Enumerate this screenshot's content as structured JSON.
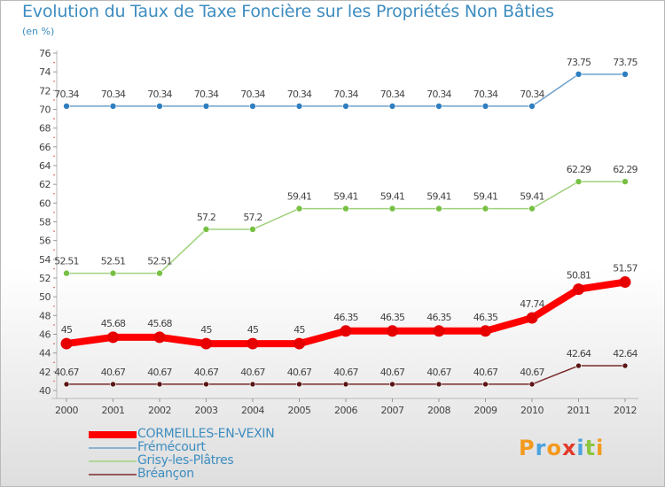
{
  "title": "Evolution du Taux de Taxe Foncière sur les Propriétés Non Bâties",
  "unit_label": "(en %)",
  "logo": {
    "text": "Proxiti",
    "letters": [
      "P",
      "r",
      "o",
      "x",
      "i",
      "t",
      "i"
    ],
    "colors": [
      "#f39a1e",
      "#4aa3df",
      "#f39a1e",
      "#e23a2a",
      "#4aa3df",
      "#8cc63f",
      "#f39a1e"
    ]
  },
  "chart_data": {
    "type": "line",
    "x": [
      "2000",
      "2001",
      "2002",
      "2003",
      "2004",
      "2005",
      "2006",
      "2007",
      "2008",
      "2009",
      "2010",
      "2011",
      "2012"
    ],
    "ylim": [
      40,
      76
    ],
    "yticks": [
      40,
      42,
      44,
      46,
      48,
      50,
      52,
      54,
      56,
      58,
      60,
      62,
      64,
      66,
      68,
      70,
      72,
      74,
      76
    ],
    "grid": false,
    "legend_position": "bottom-left",
    "series": [
      {
        "name": "Frémécourt",
        "color": "#6fa0cc",
        "marker": "#2f7ec0",
        "width": 1.5,
        "r": 3.5,
        "values": [
          70.34,
          70.34,
          70.34,
          70.34,
          70.34,
          70.34,
          70.34,
          70.34,
          70.34,
          70.34,
          70.34,
          73.75,
          73.75
        ],
        "labels": [
          "70.34",
          "70.34",
          "70.34",
          "70.34",
          "70.34",
          "70.34",
          "70.34",
          "70.34",
          "70.34",
          "70.34",
          "70.34",
          "73.75",
          "73.75"
        ]
      },
      {
        "name": "Grisy-les-Plâtres",
        "color": "#9fd27d",
        "marker": "#77c043",
        "width": 1.5,
        "r": 3.5,
        "values": [
          52.51,
          52.51,
          52.51,
          57.2,
          57.2,
          59.41,
          59.41,
          59.41,
          59.41,
          59.41,
          59.41,
          62.29,
          62.29
        ],
        "labels": [
          "52.51",
          "52.51",
          "52.51",
          "57.2",
          "57.2",
          "59.41",
          "59.41",
          "59.41",
          "59.41",
          "59.41",
          "59.41",
          "62.29",
          "62.29"
        ]
      },
      {
        "name": "CORMEILLES-EN-VEXIN",
        "color": "#ff0000",
        "marker": "#e60000",
        "width": 8,
        "r": 6.5,
        "values": [
          45,
          45.68,
          45.68,
          45,
          45,
          45,
          46.35,
          46.35,
          46.35,
          46.35,
          47.74,
          50.81,
          51.57
        ],
        "labels": [
          "45",
          "45.68",
          "45.68",
          "45",
          "45",
          "45",
          "46.35",
          "46.35",
          "46.35",
          "46.35",
          "47.74",
          "50.81",
          "51.57"
        ]
      },
      {
        "name": "Bréançon",
        "color": "#7b2a2a",
        "marker": "#5a1414",
        "width": 1.5,
        "r": 3,
        "values": [
          40.67,
          40.67,
          40.67,
          40.67,
          40.67,
          40.67,
          40.67,
          40.67,
          40.67,
          40.67,
          40.67,
          42.64,
          42.64
        ],
        "labels": [
          "40.67",
          "40.67",
          "40.67",
          "40.67",
          "40.67",
          "40.67",
          "40.67",
          "40.67",
          "40.67",
          "40.67",
          "40.67",
          "42.64",
          "42.64"
        ]
      }
    ]
  },
  "legend": [
    {
      "name": "CORMEILLES-EN-VEXIN",
      "color": "#ff0000",
      "thickness": "thick"
    },
    {
      "name": "Frémécourt",
      "color": "#6fa0cc",
      "thickness": "thin"
    },
    {
      "name": "Grisy-les-Plâtres",
      "color": "#9fd27d",
      "thickness": "thin"
    },
    {
      "name": "Bréançon",
      "color": "#7b2a2a",
      "thickness": "thin"
    }
  ]
}
